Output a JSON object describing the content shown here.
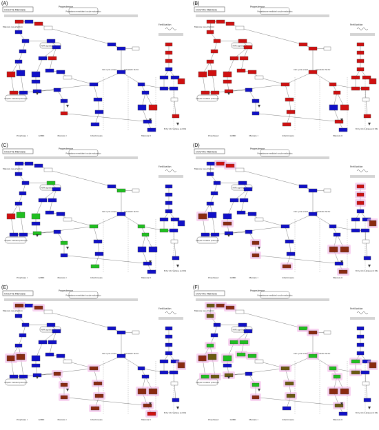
{
  "figure": {
    "panels": [
      {
        "letter": "(A)",
        "id": "A"
      },
      {
        "letter": "(B)",
        "id": "B"
      },
      {
        "letter": "(C)",
        "id": "C"
      },
      {
        "letter": "(D)",
        "id": "D"
      },
      {
        "letter": "(E)",
        "id": "E"
      },
      {
        "letter": "(F)",
        "id": "F"
      }
    ],
    "pathway_id": "OOCYTE MEIOSIS",
    "labels": {
      "progesterone_top": "Progesterone",
      "progesterone_mediated": "Progesterone-mediated oocyte maturation",
      "fertilization": "Fertilization",
      "meiosis_resumption": "Meiosis resumption",
      "maps_signaling": "MAPK signaling pathway",
      "cell_cycle_arrest": "Cell cycle arrest",
      "cytostatic_factor": "Cytostatic factor",
      "ubiquitin": "Ubiquitin mediated proteolysis",
      "prophase": "Prophase I",
      "gvbd": "GVBD",
      "meiosis_i": "Meiosis I",
      "interkinesis": "Interkinesis",
      "meiosis_ii": "Meiosis II",
      "entry_into_s": "Entry into S phase and DNA replication"
    }
  },
  "colors": {
    "blue": "#1010c8",
    "red": "#d01010",
    "green": "#20c020",
    "brown": "#8a2a10",
    "olive": "#6b5a10",
    "pink_halo": "#f4b8e8",
    "gray_line": "#444444",
    "white_box": "#ffffff"
  },
  "panel_schemes": {
    "A": "mixed-blue-red",
    "B": "mostly-red",
    "C": "blue-green",
    "D": "blue-red-brown",
    "E": "blue-brown-halo",
    "F": "brown-green-halo"
  }
}
